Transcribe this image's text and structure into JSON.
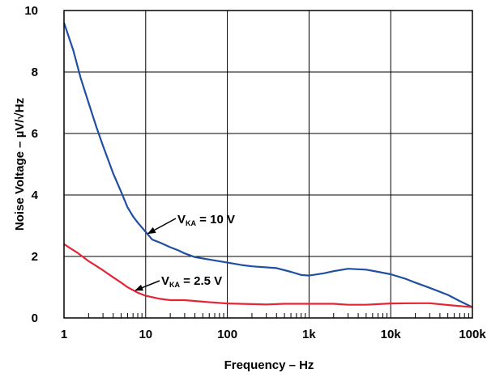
{
  "chart_data": {
    "type": "line",
    "title": "",
    "xlabel": "Frequency – Hz",
    "ylabel": "Noise Voltage – µV/√Hz",
    "x_scale": "log",
    "xlim": [
      1,
      100000
    ],
    "ylim": [
      0,
      10
    ],
    "grid": true,
    "x_ticks": [
      1,
      10,
      100,
      1000,
      10000,
      100000
    ],
    "x_tick_labels": [
      "1",
      "10",
      "100",
      "1k",
      "10k",
      "100k"
    ],
    "y_ticks": [
      0,
      2,
      4,
      6,
      8,
      10
    ],
    "y_tick_labels": [
      "0",
      "2",
      "4",
      "6",
      "8",
      "10"
    ],
    "series": [
      {
        "color": "#1f4fa0",
        "points": [
          [
            1,
            9.6
          ],
          [
            1.3,
            8.7
          ],
          [
            1.6,
            7.8
          ],
          [
            2,
            7.0
          ],
          [
            2.5,
            6.2
          ],
          [
            3,
            5.6
          ],
          [
            4,
            4.7
          ],
          [
            5,
            4.1
          ],
          [
            6,
            3.6
          ],
          [
            7,
            3.3
          ],
          [
            8,
            3.1
          ],
          [
            10,
            2.8
          ],
          [
            12,
            2.55
          ],
          [
            15,
            2.45
          ],
          [
            20,
            2.3
          ],
          [
            25,
            2.2
          ],
          [
            30,
            2.1
          ],
          [
            40,
            1.98
          ],
          [
            60,
            1.9
          ],
          [
            100,
            1.8
          ],
          [
            150,
            1.72
          ],
          [
            200,
            1.68
          ],
          [
            400,
            1.62
          ],
          [
            600,
            1.5
          ],
          [
            800,
            1.4
          ],
          [
            1000,
            1.38
          ],
          [
            1500,
            1.45
          ],
          [
            2000,
            1.52
          ],
          [
            3000,
            1.6
          ],
          [
            5000,
            1.57
          ],
          [
            7000,
            1.5
          ],
          [
            10000,
            1.42
          ],
          [
            15000,
            1.28
          ],
          [
            20000,
            1.15
          ],
          [
            30000,
            0.98
          ],
          [
            50000,
            0.75
          ],
          [
            70000,
            0.55
          ],
          [
            100000,
            0.35
          ]
        ]
      },
      {
        "color": "#e32636",
        "points": [
          [
            1,
            2.4
          ],
          [
            1.5,
            2.1
          ],
          [
            2,
            1.85
          ],
          [
            3,
            1.55
          ],
          [
            4,
            1.32
          ],
          [
            5,
            1.15
          ],
          [
            6,
            1.0
          ],
          [
            8,
            0.82
          ],
          [
            10,
            0.72
          ],
          [
            15,
            0.62
          ],
          [
            20,
            0.58
          ],
          [
            30,
            0.58
          ],
          [
            50,
            0.53
          ],
          [
            100,
            0.47
          ],
          [
            200,
            0.45
          ],
          [
            300,
            0.44
          ],
          [
            500,
            0.46
          ],
          [
            1000,
            0.46
          ],
          [
            2000,
            0.46
          ],
          [
            3000,
            0.43
          ],
          [
            5000,
            0.43
          ],
          [
            7000,
            0.45
          ],
          [
            10000,
            0.47
          ],
          [
            20000,
            0.48
          ],
          [
            30000,
            0.48
          ],
          [
            50000,
            0.42
          ],
          [
            100000,
            0.35
          ]
        ]
      }
    ],
    "annotations": [
      {
        "main": "V",
        "sub": "KA",
        "rest": " = 10 V",
        "target": [
          10,
          2.8
        ]
      },
      {
        "main": "V",
        "sub": "KA",
        "rest": " = 2.5 V",
        "target": [
          7,
          0.95
        ]
      }
    ]
  }
}
